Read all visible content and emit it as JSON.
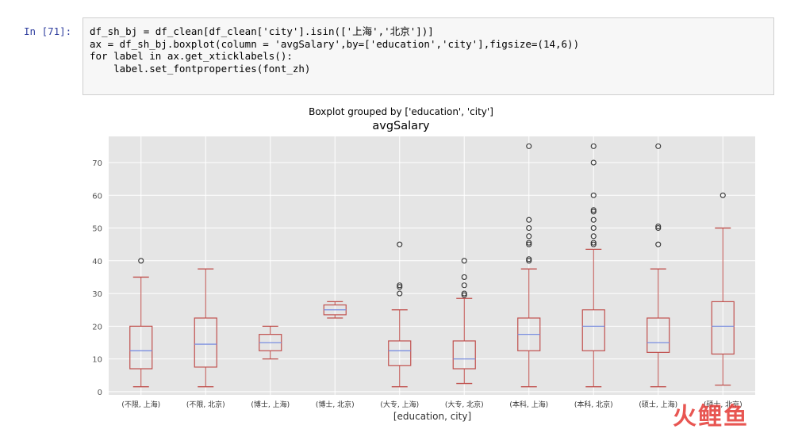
{
  "cell": {
    "prompt": "In [71]:",
    "code_line1": "df_sh_bj = df_clean[df_clean['city'].isin(['上海','北京'])]",
    "code_line3": "ax = df_sh_bj.boxplot(column = 'avgSalary',by=['education','city'],figsize=(14,6))",
    "code_line4": "for label in ax.get_xticklabels():",
    "code_line5": "    label.set_fontproperties(font_zh)"
  },
  "figure": {
    "suptitle": "Boxplot grouped by ['education', 'city']",
    "axes_title": "avgSalary",
    "xlabel": "[education, city]"
  },
  "watermark": "火鲤鱼",
  "chart_data": {
    "type": "box",
    "title": "avgSalary",
    "suptitle": "Boxplot grouped by ['education', 'city']",
    "xlabel": "[education, city]",
    "ylabel": "",
    "ylim": [
      -1,
      78
    ],
    "yticks": [
      0,
      10,
      20,
      30,
      40,
      50,
      60,
      70
    ],
    "grid": true,
    "box_color": "#c0504d",
    "median_color": "#7b8fe0",
    "background": "#e5e5e5",
    "categories": [
      "(不限, 上海)",
      "(不限, 北京)",
      "(博士, 上海)",
      "(博士, 北京)",
      "(大专, 上海)",
      "(大专, 北京)",
      "(本科, 上海)",
      "(本科, 北京)",
      "(硕士, 上海)",
      "(硕士, 北京)"
    ],
    "boxes": [
      {
        "whislo": 1.5,
        "q1": 7,
        "med": 12.5,
        "q3": 20,
        "whishi": 35,
        "fliers": [
          40
        ]
      },
      {
        "whislo": 1.5,
        "q1": 7.5,
        "med": 14.5,
        "q3": 22.5,
        "whishi": 37.5,
        "fliers": []
      },
      {
        "whislo": 10,
        "q1": 12.5,
        "med": 15,
        "q3": 17.5,
        "whishi": 20,
        "fliers": []
      },
      {
        "whislo": 22.5,
        "q1": 23.5,
        "med": 25,
        "q3": 26.5,
        "whishi": 27.5,
        "fliers": []
      },
      {
        "whislo": 1.5,
        "q1": 8,
        "med": 12.5,
        "q3": 15.5,
        "whishi": 25,
        "fliers": [
          30,
          32,
          32.5,
          45
        ]
      },
      {
        "whislo": 2.5,
        "q1": 7,
        "med": 10,
        "q3": 15.5,
        "whishi": 28.5,
        "fliers": [
          29.5,
          30,
          32.5,
          35,
          40
        ]
      },
      {
        "whislo": 1.5,
        "q1": 12.5,
        "med": 17.5,
        "q3": 22.5,
        "whishi": 37.5,
        "fliers": [
          40,
          40.5,
          45,
          45.5,
          47.5,
          50,
          52.5,
          75
        ]
      },
      {
        "whislo": 1.5,
        "q1": 12.5,
        "med": 20,
        "q3": 25,
        "whishi": 43.5,
        "fliers": [
          45,
          45.5,
          47.5,
          50,
          52.5,
          55,
          55.5,
          60,
          70,
          75
        ]
      },
      {
        "whislo": 1.5,
        "q1": 12,
        "med": 15,
        "q3": 22.5,
        "whishi": 37.5,
        "fliers": [
          45,
          50,
          50.5,
          75
        ]
      },
      {
        "whislo": 2,
        "q1": 11.5,
        "med": 20,
        "q3": 27.5,
        "whishi": 50,
        "fliers": [
          60
        ]
      }
    ]
  }
}
